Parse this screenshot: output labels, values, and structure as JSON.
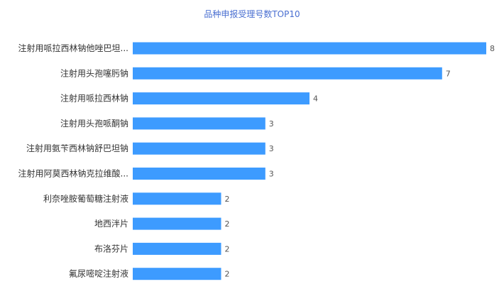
{
  "chart_data": {
    "type": "bar",
    "orientation": "horizontal",
    "title": "品种申报受理号数TOP10",
    "categories": [
      "注射用哌拉西林钠他唑巴坦...",
      "注射用头孢噻肟钠",
      "注射用哌拉西林钠",
      "注射用头孢哌酮钠",
      "注射用氨苄西林钠舒巴坦钠",
      "注射用阿莫西林钠克拉维酸...",
      "利奈唑胺葡萄糖注射液",
      "地西泮片",
      "布洛芬片",
      "氟尿嘧啶注射液"
    ],
    "values": [
      8,
      7,
      4,
      3,
      3,
      3,
      2,
      2,
      2,
      2
    ],
    "xlim": [
      0,
      8
    ],
    "grid": false,
    "legend": "none",
    "bar_color": "#3d9bff"
  }
}
